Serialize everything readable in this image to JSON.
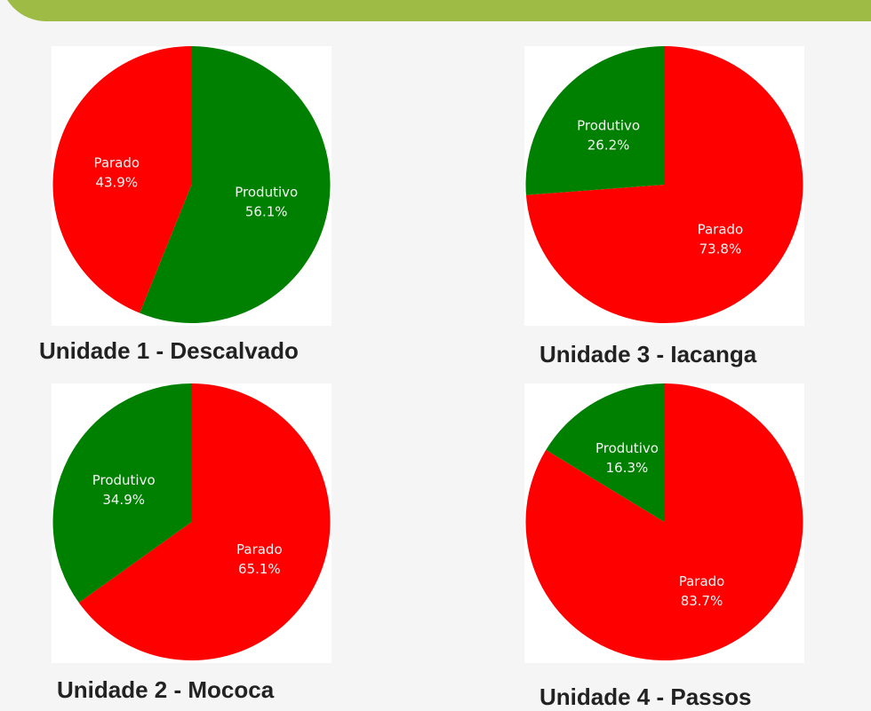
{
  "colors": {
    "Produtivo": "#008000",
    "Parado": "#ff0000",
    "banner": "#9ebb45"
  },
  "chart_data": [
    {
      "type": "pie",
      "title": "Unidade 1 - Descalvado",
      "start": "Produtivo",
      "slices": [
        {
          "label": "Produtivo",
          "value": 56.1,
          "display": "56.1%"
        },
        {
          "label": "Parado",
          "value": 43.9,
          "display": "43.9%"
        }
      ]
    },
    {
      "type": "pie",
      "title": "Unidade 2 - Mococa",
      "start": "Parado",
      "slices": [
        {
          "label": "Parado",
          "value": 65.1,
          "display": "65.1%"
        },
        {
          "label": "Produtivo",
          "value": 34.9,
          "display": "34.9%"
        }
      ]
    },
    {
      "type": "pie",
      "title": "Unidade 3 - Iacanga",
      "start": "Parado",
      "slices": [
        {
          "label": "Parado",
          "value": 73.8,
          "display": "73.8%"
        },
        {
          "label": "Produtivo",
          "value": 26.2,
          "display": "26.2%"
        }
      ]
    },
    {
      "type": "pie",
      "title": "Unidade 4 - Passos",
      "start": "Parado",
      "slices": [
        {
          "label": "Parado",
          "value": 83.7,
          "display": "83.7%"
        },
        {
          "label": "Produtivo",
          "value": 16.3,
          "display": "16.3%"
        }
      ]
    }
  ]
}
